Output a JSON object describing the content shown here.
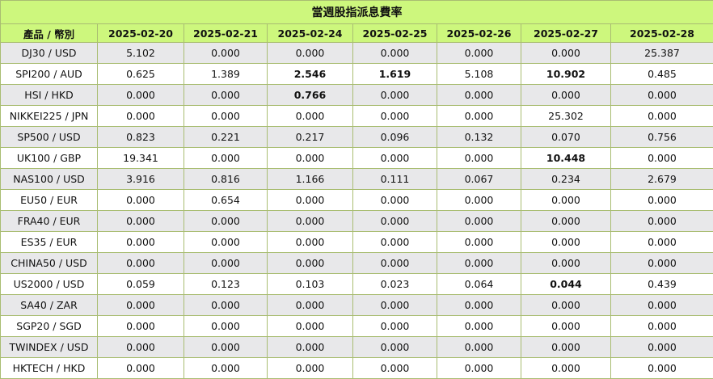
{
  "title": "當週股指派息費率",
  "header": {
    "product": "產品 / 幣別",
    "dates": [
      "2025-02-20",
      "2025-02-21",
      "2025-02-24",
      "2025-02-25",
      "2025-02-26",
      "2025-02-27",
      "2025-02-28"
    ]
  },
  "rows": [
    {
      "product": "DJ30 / USD",
      "values": [
        "5.102",
        "0.000",
        "0.000",
        "0.000",
        "0.000",
        "0.000",
        "25.387"
      ],
      "bold": []
    },
    {
      "product": "SPI200 / AUD",
      "values": [
        "0.625",
        "1.389",
        "2.546",
        "1.619",
        "5.108",
        "10.902",
        "0.485"
      ],
      "bold": [
        2,
        3,
        5
      ]
    },
    {
      "product": "HSI / HKD",
      "values": [
        "0.000",
        "0.000",
        "0.766",
        "0.000",
        "0.000",
        "0.000",
        "0.000"
      ],
      "bold": [
        2
      ]
    },
    {
      "product": "NIKKEI225 / JPN",
      "values": [
        "0.000",
        "0.000",
        "0.000",
        "0.000",
        "0.000",
        "25.302",
        "0.000"
      ],
      "bold": []
    },
    {
      "product": "SP500 / USD",
      "values": [
        "0.823",
        "0.221",
        "0.217",
        "0.096",
        "0.132",
        "0.070",
        "0.756"
      ],
      "bold": []
    },
    {
      "product": "UK100 / GBP",
      "values": [
        "19.341",
        "0.000",
        "0.000",
        "0.000",
        "0.000",
        "10.448",
        "0.000"
      ],
      "bold": [
        5
      ]
    },
    {
      "product": "NAS100 / USD",
      "values": [
        "3.916",
        "0.816",
        "1.166",
        "0.111",
        "0.067",
        "0.234",
        "2.679"
      ],
      "bold": []
    },
    {
      "product": "EU50 / EUR",
      "values": [
        "0.000",
        "0.654",
        "0.000",
        "0.000",
        "0.000",
        "0.000",
        "0.000"
      ],
      "bold": []
    },
    {
      "product": "FRA40 / EUR",
      "values": [
        "0.000",
        "0.000",
        "0.000",
        "0.000",
        "0.000",
        "0.000",
        "0.000"
      ],
      "bold": []
    },
    {
      "product": "ES35 / EUR",
      "values": [
        "0.000",
        "0.000",
        "0.000",
        "0.000",
        "0.000",
        "0.000",
        "0.000"
      ],
      "bold": []
    },
    {
      "product": "CHINA50 / USD",
      "values": [
        "0.000",
        "0.000",
        "0.000",
        "0.000",
        "0.000",
        "0.000",
        "0.000"
      ],
      "bold": []
    },
    {
      "product": "US2000 / USD",
      "values": [
        "0.059",
        "0.123",
        "0.103",
        "0.023",
        "0.064",
        "0.044",
        "0.439"
      ],
      "bold": [
        5
      ]
    },
    {
      "product": "SA40 / ZAR",
      "values": [
        "0.000",
        "0.000",
        "0.000",
        "0.000",
        "0.000",
        "0.000",
        "0.000"
      ],
      "bold": []
    },
    {
      "product": "SGP20 / SGD",
      "values": [
        "0.000",
        "0.000",
        "0.000",
        "0.000",
        "0.000",
        "0.000",
        "0.000"
      ],
      "bold": []
    },
    {
      "product": "TWINDEX / USD",
      "values": [
        "0.000",
        "0.000",
        "0.000",
        "0.000",
        "0.000",
        "0.000",
        "0.000"
      ],
      "bold": []
    },
    {
      "product": "HKTECH / HKD",
      "values": [
        "0.000",
        "0.000",
        "0.000",
        "0.000",
        "0.000",
        "0.000",
        "0.000"
      ],
      "bold": []
    }
  ]
}
